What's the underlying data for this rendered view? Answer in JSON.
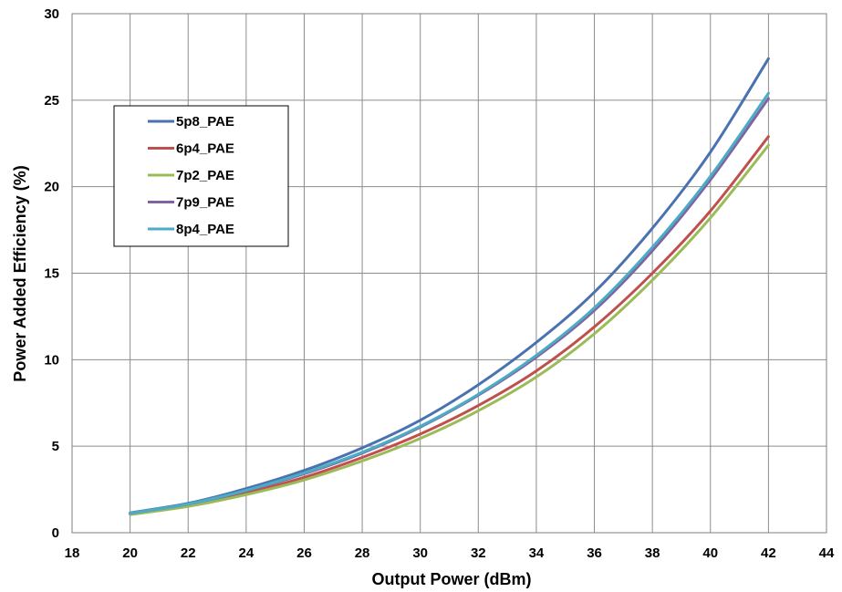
{
  "chart_data": {
    "type": "line",
    "title": "",
    "xlabel": "Output Power (dBm)",
    "ylabel": "Power Added Efficiency (%)",
    "xlim": [
      18,
      44
    ],
    "ylim": [
      0,
      30
    ],
    "xticks": [
      "18",
      "20",
      "22",
      "24",
      "26",
      "28",
      "30",
      "32",
      "34",
      "36",
      "38",
      "40",
      "42",
      "44"
    ],
    "yticks": [
      "0",
      "5",
      "10",
      "15",
      "20",
      "25",
      "30"
    ],
    "grid": true,
    "legend_position": "upper-left",
    "x": [
      20,
      22,
      24,
      26,
      28,
      30,
      32,
      34,
      36,
      38,
      40,
      42
    ],
    "series": [
      {
        "name": "5p8_PAE",
        "color": "#4a72b0",
        "values": [
          1.15,
          1.7,
          2.55,
          3.6,
          4.9,
          6.5,
          8.55,
          11.0,
          13.9,
          17.6,
          22.0,
          27.4
        ]
      },
      {
        "name": "6p4_PAE",
        "color": "#c0504d",
        "values": [
          1.08,
          1.58,
          2.3,
          3.2,
          4.35,
          5.7,
          7.35,
          9.35,
          11.9,
          15.0,
          18.6,
          22.9
        ]
      },
      {
        "name": "7p2_PAE",
        "color": "#9bbb59",
        "values": [
          1.05,
          1.52,
          2.2,
          3.05,
          4.15,
          5.45,
          7.05,
          9.0,
          11.5,
          14.6,
          18.2,
          22.4
        ]
      },
      {
        "name": "7p9_PAE",
        "color": "#8064a2",
        "values": [
          1.12,
          1.65,
          2.42,
          3.4,
          4.6,
          6.1,
          7.95,
          10.15,
          12.85,
          16.3,
          20.4,
          25.1
        ]
      },
      {
        "name": "8p4_PAE",
        "color": "#4bacc6",
        "values": [
          1.12,
          1.66,
          2.45,
          3.45,
          4.65,
          6.15,
          8.0,
          10.25,
          13.0,
          16.5,
          20.6,
          25.4
        ]
      }
    ]
  }
}
